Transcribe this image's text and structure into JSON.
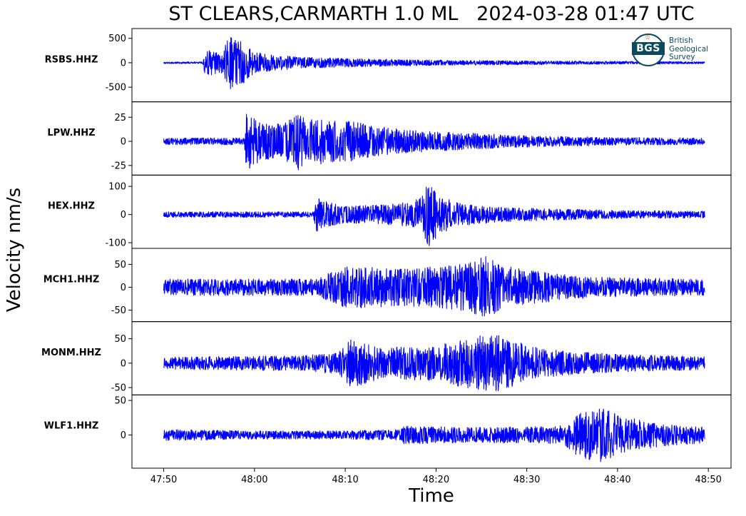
{
  "chart_data": {
    "type": "line",
    "title": "ST CLEARS,CARMARTH 1.0 ML   2024-03-28 01:47 UTC",
    "xlabel": "Time",
    "ylabel": "Velocity nm/s",
    "line_color": "#0000ff",
    "x_ticks": [
      "47:50",
      "48:00",
      "48:10",
      "48:20",
      "48:30",
      "48:40",
      "48:50"
    ],
    "x_tick_seconds": [
      0,
      10,
      20,
      30,
      40,
      50,
      60
    ],
    "xlim_seconds": [
      -3.5,
      62.5
    ],
    "signal_start_seconds": 0,
    "signal_end_seconds": 59.6,
    "series": [
      {
        "name": "RSBS.HHZ",
        "ylim": [
          -800,
          700
        ],
        "yticks": [
          500,
          0,
          -500
        ],
        "ytick_labels": [
          "500",
          "0",
          "-500"
        ],
        "envelope": [
          [
            0,
            18
          ],
          [
            4.3,
            20
          ],
          [
            4.5,
            260
          ],
          [
            5.5,
            250
          ],
          [
            6.5,
            220
          ],
          [
            7.2,
            560
          ],
          [
            8,
            450
          ],
          [
            8.5,
            500
          ],
          [
            9,
            380
          ],
          [
            10,
            220
          ],
          [
            12,
            160
          ],
          [
            15,
            120
          ],
          [
            20,
            90
          ],
          [
            25,
            70
          ],
          [
            30,
            55
          ],
          [
            40,
            40
          ],
          [
            50,
            30
          ],
          [
            59.6,
            22
          ]
        ]
      },
      {
        "name": "LPW.HHZ",
        "ylim": [
          -35,
          41
        ],
        "yticks": [
          25,
          0,
          -25
        ],
        "ytick_labels": [
          "25",
          "0",
          "-25"
        ],
        "envelope": [
          [
            0,
            3.5
          ],
          [
            8.9,
            3.5
          ],
          [
            9.1,
            32
          ],
          [
            9.8,
            25
          ],
          [
            11,
            20
          ],
          [
            13,
            18
          ],
          [
            14.8,
            30
          ],
          [
            16,
            22
          ],
          [
            17,
            24
          ],
          [
            19,
            22
          ],
          [
            21,
            20
          ],
          [
            24,
            15
          ],
          [
            27,
            12
          ],
          [
            30,
            10
          ],
          [
            35,
            8
          ],
          [
            40,
            6
          ],
          [
            45,
            5
          ],
          [
            50,
            4
          ],
          [
            59.6,
            3.5
          ]
        ]
      },
      {
        "name": "HEX.HHZ",
        "ylim": [
          -120,
          140
        ],
        "yticks": [
          100,
          0,
          -100
        ],
        "ytick_labels": [
          "100",
          "0",
          "-100"
        ],
        "envelope": [
          [
            0,
            10
          ],
          [
            16.5,
            10
          ],
          [
            16.7,
            65
          ],
          [
            18,
            45
          ],
          [
            20,
            30
          ],
          [
            24,
            35
          ],
          [
            27,
            45
          ],
          [
            28,
            55
          ],
          [
            29.2,
            115
          ],
          [
            30.5,
            70
          ],
          [
            32,
            45
          ],
          [
            34,
            35
          ],
          [
            38,
            25
          ],
          [
            44,
            20
          ],
          [
            50,
            15
          ],
          [
            59.6,
            12
          ]
        ]
      },
      {
        "name": "MCH1.HHZ",
        "ylim": [
          -75,
          85
        ],
        "yticks": [
          50,
          0,
          -50
        ],
        "ytick_labels": [
          "50",
          "0",
          "-50"
        ],
        "envelope": [
          [
            0,
            18
          ],
          [
            17,
            18
          ],
          [
            18,
            30
          ],
          [
            20,
            45
          ],
          [
            23,
            45
          ],
          [
            26,
            40
          ],
          [
            30,
            45
          ],
          [
            34,
            55
          ],
          [
            35.5,
            70
          ],
          [
            37,
            50
          ],
          [
            40,
            38
          ],
          [
            44,
            28
          ],
          [
            48,
            22
          ],
          [
            53,
            20
          ],
          [
            59.6,
            18
          ]
        ]
      },
      {
        "name": "MONM.HHZ",
        "ylim": [
          -65,
          85
        ],
        "yticks": [
          50,
          0,
          -50
        ],
        "ytick_labels": [
          "50",
          "0",
          "-50"
        ],
        "envelope": [
          [
            0,
            12
          ],
          [
            10,
            15
          ],
          [
            15,
            15
          ],
          [
            19,
            22
          ],
          [
            20.5,
            50
          ],
          [
            22,
            45
          ],
          [
            24,
            30
          ],
          [
            27,
            35
          ],
          [
            30,
            35
          ],
          [
            34,
            55
          ],
          [
            36,
            60
          ],
          [
            38,
            55
          ],
          [
            40,
            35
          ],
          [
            44,
            25
          ],
          [
            50,
            18
          ],
          [
            59.6,
            14
          ]
        ]
      },
      {
        "name": "WLF1.HHZ",
        "ylim": [
          -48,
          58
        ],
        "yticks": [
          50,
          0
        ],
        "ytick_labels": [
          "50",
          "0"
        ],
        "envelope": [
          [
            0,
            8
          ],
          [
            5,
            7
          ],
          [
            10,
            6
          ],
          [
            20,
            6
          ],
          [
            26,
            8
          ],
          [
            26.5,
            13
          ],
          [
            30,
            12
          ],
          [
            34,
            11
          ],
          [
            40,
            12
          ],
          [
            44,
            14
          ],
          [
            46,
            35
          ],
          [
            48,
            40
          ],
          [
            50,
            30
          ],
          [
            53,
            20
          ],
          [
            56,
            15
          ],
          [
            59.6,
            12
          ]
        ]
      }
    ]
  },
  "logo": {
    "initials": "BGS",
    "lines": [
      "British",
      "Geological",
      "Survey"
    ]
  }
}
